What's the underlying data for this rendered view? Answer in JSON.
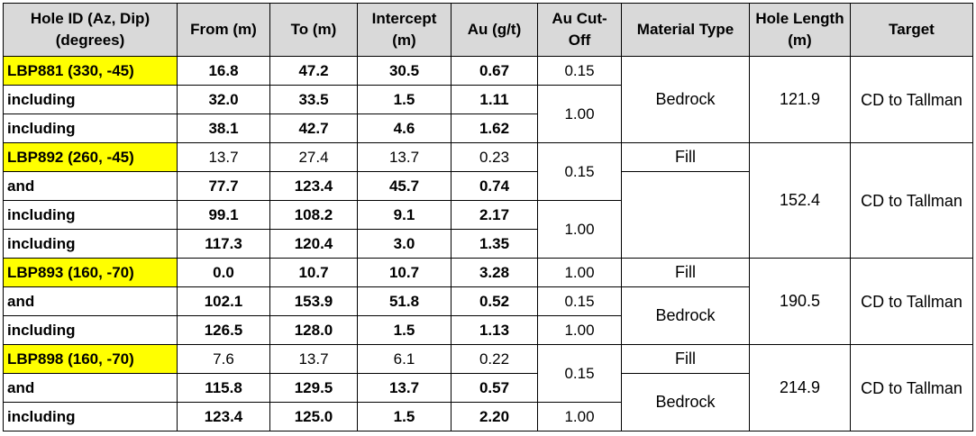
{
  "headers": {
    "hole_id": "Hole ID (Az, Dip) (degrees)",
    "from": "From (m)",
    "to": "To (m)",
    "intercept": "Intercept (m)",
    "au": "Au (g/t)",
    "cutoff": "Au Cut-Off",
    "material": "Material Type",
    "hole_length": "Hole Length (m)",
    "target": "Target"
  },
  "rows": [
    {
      "hole": "LBP881 (330, -45)",
      "from": "16.8",
      "to": "47.2",
      "intercept": "30.5",
      "au": "0.67",
      "cutoff": "0.15",
      "material": "Bedrock",
      "hole_length": "121.9",
      "target": "CD to Tallman"
    },
    {
      "hole": "including",
      "from": "32.0",
      "to": "33.5",
      "intercept": "1.5",
      "au": "1.11",
      "cutoff": "1.00"
    },
    {
      "hole": "including",
      "from": "38.1",
      "to": "42.7",
      "intercept": "4.6",
      "au": "1.62"
    },
    {
      "hole": "LBP892 (260, -45)",
      "from": "13.7",
      "to": "27.4",
      "intercept": "13.7",
      "au": "0.23",
      "cutoff": "0.15",
      "material": "Fill",
      "hole_length": "152.4",
      "target": "CD to Tallman"
    },
    {
      "hole": "and",
      "from": "77.7",
      "to": "123.4",
      "intercept": "45.7",
      "au": "0.74",
      "material": ""
    },
    {
      "hole": "including",
      "from": "99.1",
      "to": "108.2",
      "intercept": "9.1",
      "au": "2.17",
      "cutoff": "1.00"
    },
    {
      "hole": "including",
      "from": "117.3",
      "to": "120.4",
      "intercept": "3.0",
      "au": "1.35"
    },
    {
      "hole": "LBP893 (160, -70)",
      "from": "0.0",
      "to": "10.7",
      "intercept": "10.7",
      "au": "3.28",
      "cutoff": "1.00",
      "material": "Fill",
      "hole_length": "190.5",
      "target": "CD to Tallman"
    },
    {
      "hole": "and",
      "from": "102.1",
      "to": "153.9",
      "intercept": "51.8",
      "au": "0.52",
      "cutoff": "0.15",
      "material": "Bedrock"
    },
    {
      "hole": "including",
      "from": "126.5",
      "to": "128.0",
      "intercept": "1.5",
      "au": "1.13",
      "cutoff": "1.00"
    },
    {
      "hole": "LBP898 (160, -70)",
      "from": "7.6",
      "to": "13.7",
      "intercept": "6.1",
      "au": "0.22",
      "cutoff": "0.15",
      "material": "Fill",
      "hole_length": "214.9",
      "target": "CD to Tallman"
    },
    {
      "hole": "and",
      "from": "115.8",
      "to": "129.5",
      "intercept": "13.7",
      "au": "0.57",
      "material": "Bedrock"
    },
    {
      "hole": "including",
      "from": "123.4",
      "to": "125.0",
      "intercept": "1.5",
      "au": "2.20",
      "cutoff": "1.00"
    }
  ],
  "colors": {
    "header_bg": "#d9d9d9",
    "highlight": "#ffff00",
    "border": "#000000"
  }
}
